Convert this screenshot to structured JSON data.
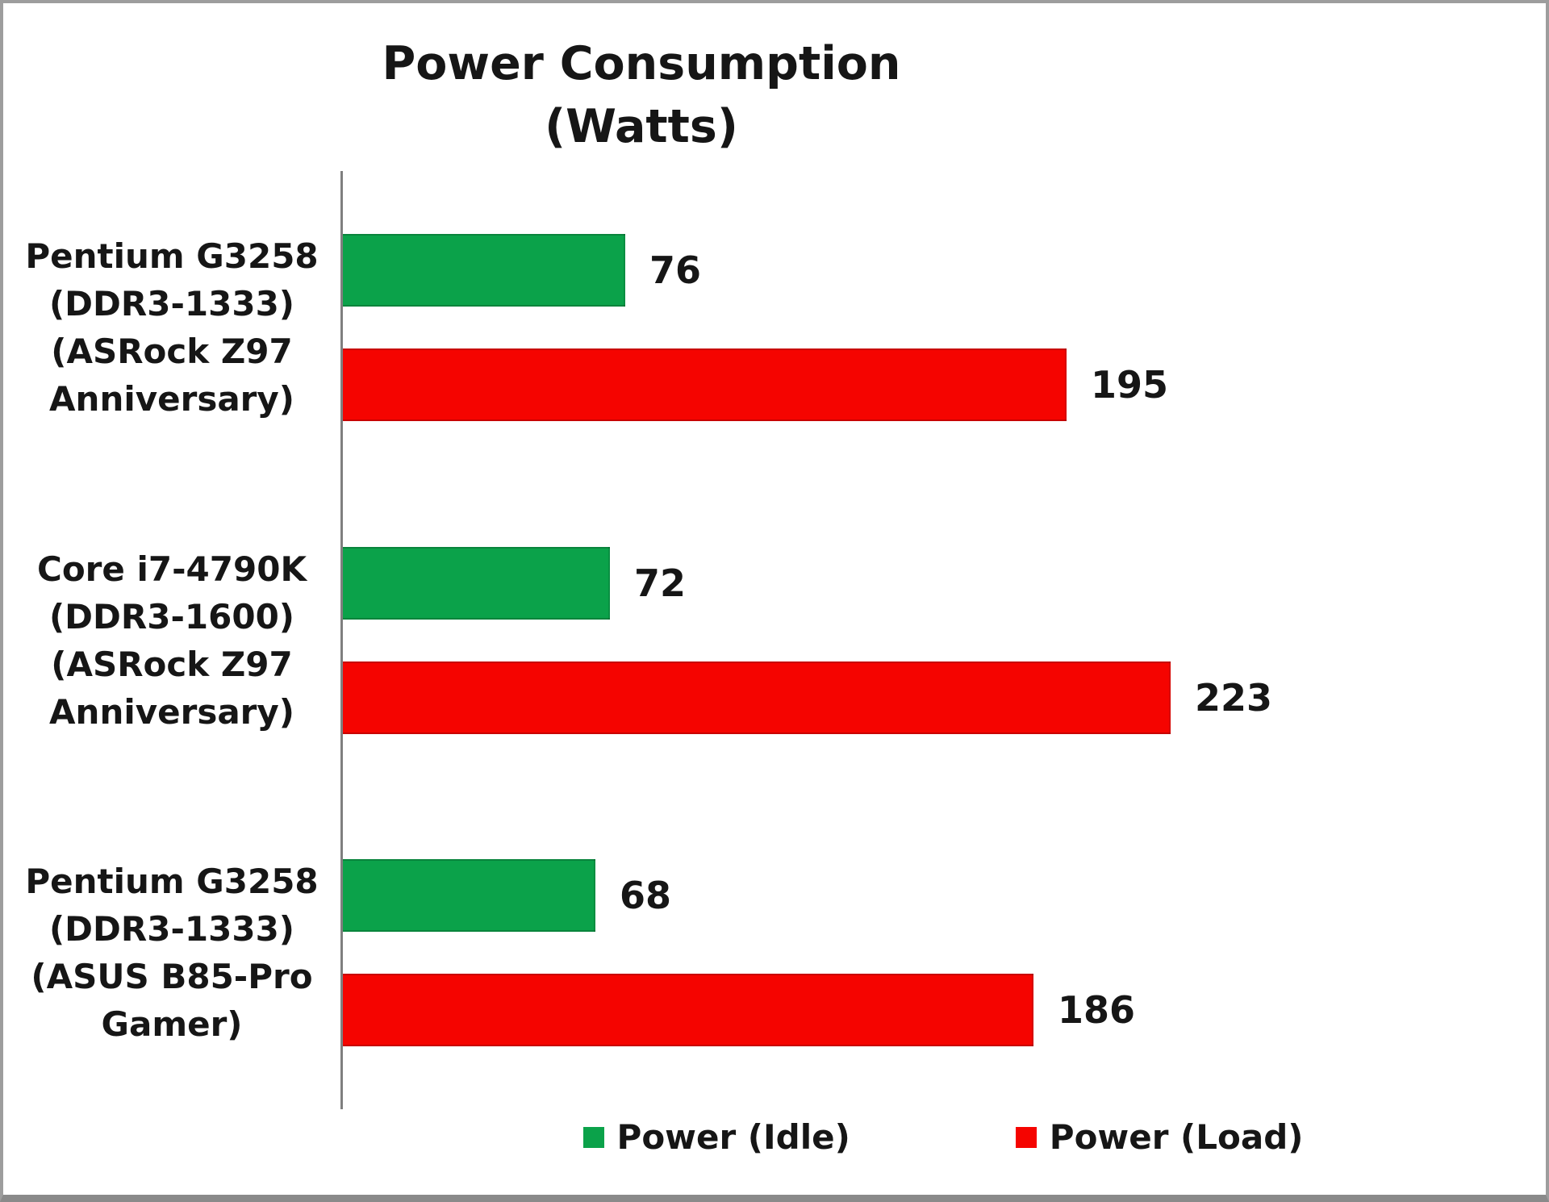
{
  "chart_data": {
    "type": "bar",
    "orientation": "horizontal",
    "title": "Power Consumption",
    "subtitle": "(Watts)",
    "categories": [
      "Pentium G3258 (DDR3-1333) (ASRock Z97 Anniversary)",
      "Core i7-4790K (DDR3-1600) (ASRock Z97 Anniversary)",
      "Pentium G3258 (DDR3-1333) (ASUS B85-Pro Gamer)"
    ],
    "category_lines": [
      [
        "Pentium G3258",
        "(DDR3-1333)",
        "(ASRock Z97",
        "Anniversary)"
      ],
      [
        "Core i7-4790K",
        "(DDR3-1600)",
        "(ASRock Z97",
        "Anniversary)"
      ],
      [
        "Pentium G3258",
        "(DDR3-1333)",
        "(ASUS B85-Pro",
        "Gamer)"
      ]
    ],
    "series": [
      {
        "name": "Power (Idle)",
        "color": "#0ba24a",
        "values": [
          76,
          72,
          68
        ]
      },
      {
        "name": "Power (Load)",
        "color": "#f50400",
        "values": [
          195,
          223,
          186
        ]
      }
    ],
    "value_labels_shown": true,
    "legend_position": "bottom",
    "axis": {
      "gridlines": false,
      "x_tick_labels_visible": false,
      "baseline_color": "#7f7f7f"
    },
    "text_color": "#161616",
    "background_color": "#ffffff"
  }
}
